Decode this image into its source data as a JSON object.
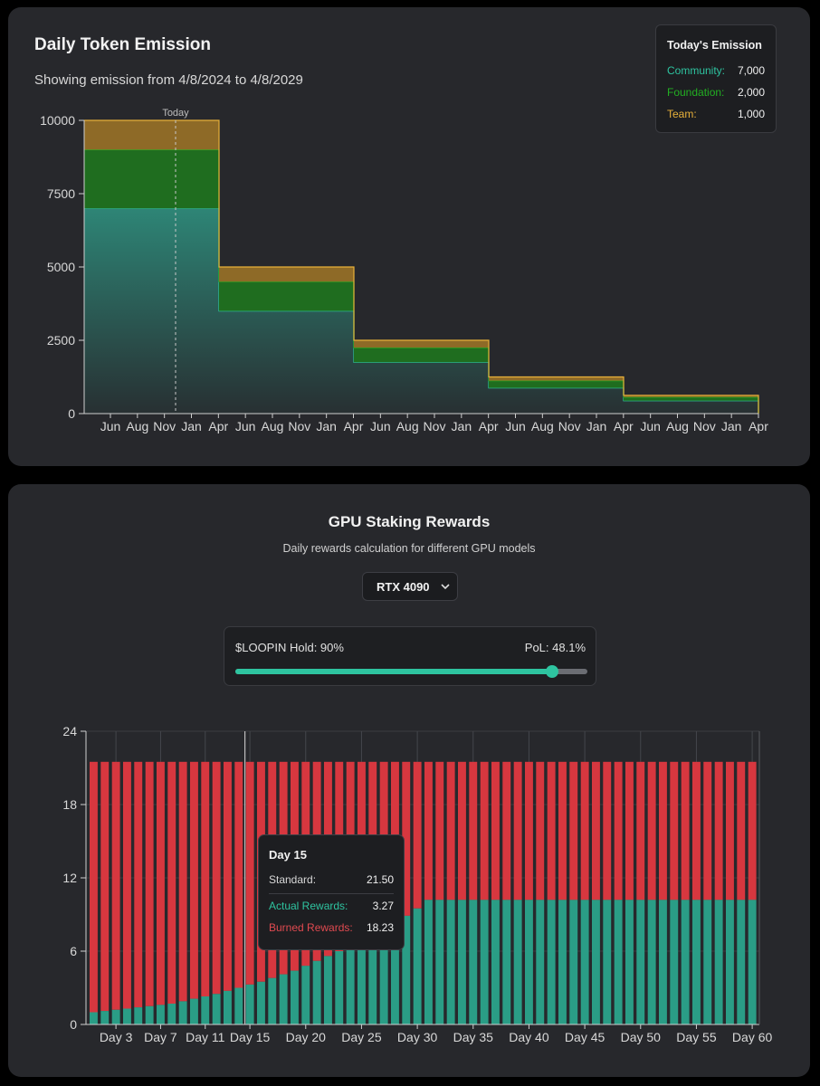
{
  "colors": {
    "community": "#2ec4a0",
    "foundation": "#22b022",
    "team": "#e8b13a",
    "actual": "#2a9d86",
    "burned": "#d7373f",
    "axis": "#cfcfcf"
  },
  "emission": {
    "title": "Daily Token Emission",
    "subtitle": "Showing emission from 4/8/2024 to 4/8/2029",
    "today_label": "Today",
    "legend": {
      "title": "Today's Emission",
      "items": [
        {
          "name": "Community:",
          "value": "7,000"
        },
        {
          "name": "Foundation:",
          "value": "2,000"
        },
        {
          "name": "Team:",
          "value": "1,000"
        }
      ]
    }
  },
  "staking": {
    "title": "GPU Staking Rewards",
    "subtitle": "Daily rewards calculation for different GPU models",
    "gpu_select": {
      "selected": "RTX 4090",
      "chevron_icon": "chevron-down-icon"
    },
    "slider": {
      "left_label": "$LOOPIN Hold: 90%",
      "right_label": "PoL: 48.1%",
      "value": 0.9
    },
    "tooltip": {
      "title": "Day 15",
      "rows": [
        {
          "label": "Standard:",
          "value": "21.50"
        },
        {
          "label": "Actual Rewards:",
          "value": "3.27"
        },
        {
          "label": "Burned Rewards:",
          "value": "18.23"
        }
      ]
    }
  },
  "chart_data": [
    {
      "type": "area",
      "stacked": true,
      "step": true,
      "title": "Daily Token Emission",
      "x_ticks": [
        "Jun",
        "Aug",
        "Nov",
        "Jan",
        "Apr",
        "Jun",
        "Aug",
        "Nov",
        "Jan",
        "Apr",
        "Jun",
        "Aug",
        "Nov",
        "Jan",
        "Apr",
        "Jun",
        "Aug",
        "Nov",
        "Jan",
        "Apr",
        "Jun",
        "Aug",
        "Nov",
        "Jan",
        "Apr"
      ],
      "y_ticks": [
        "0",
        "2500",
        "5000",
        "7500",
        "10000"
      ],
      "ylim": [
        0,
        10000
      ],
      "x_periods": [
        "2024-04-08 to 2025-04-08",
        "2025-04-08 to 2026-04-08",
        "2026-04-08 to 2027-04-08",
        "2027-04-08 to 2028-04-08",
        "2028-04-08 to 2029-04-08"
      ],
      "series": [
        {
          "name": "Community",
          "values": [
            7000,
            3500,
            1750,
            875,
            437.5
          ]
        },
        {
          "name": "Foundation",
          "values": [
            2000,
            1000,
            500,
            250,
            125
          ]
        },
        {
          "name": "Team",
          "values": [
            1000,
            500,
            250,
            125,
            62.5
          ]
        }
      ],
      "today": "Nov 2024",
      "grid": false
    },
    {
      "type": "bar",
      "stacked": true,
      "x_ticks": [
        "Day 3",
        "Day 7",
        "Day 11",
        "Day 15",
        "Day 20",
        "Day 25",
        "Day 30",
        "Day 35",
        "Day 40",
        "Day 45",
        "Day 50",
        "Day 55",
        "Day 60"
      ],
      "y_ticks": [
        "0",
        "6",
        "12",
        "18",
        "24"
      ],
      "ylim": [
        0,
        24
      ],
      "days": [
        1,
        2,
        3,
        4,
        5,
        6,
        7,
        8,
        9,
        10,
        11,
        12,
        13,
        14,
        15,
        16,
        17,
        18,
        19,
        20,
        21,
        22,
        23,
        24,
        25,
        26,
        27,
        28,
        29,
        30,
        31,
        32,
        33,
        34,
        35,
        36,
        37,
        38,
        39,
        40,
        41,
        42,
        43,
        44,
        45,
        46,
        47,
        48,
        49,
        50,
        51,
        52,
        53,
        54,
        55,
        56,
        57,
        58,
        59,
        60
      ],
      "series": [
        {
          "name": "Actual Rewards",
          "values": [
            1.0,
            1.1,
            1.2,
            1.3,
            1.4,
            1.5,
            1.6,
            1.7,
            1.9,
            2.1,
            2.3,
            2.5,
            2.75,
            3.0,
            3.27,
            3.5,
            3.8,
            4.1,
            4.4,
            4.8,
            5.2,
            5.6,
            6.0,
            6.4,
            6.9,
            7.3,
            7.8,
            8.3,
            8.9,
            9.5,
            10.2,
            10.2,
            10.2,
            10.2,
            10.2,
            10.2,
            10.2,
            10.2,
            10.2,
            10.2,
            10.2,
            10.2,
            10.2,
            10.2,
            10.2,
            10.2,
            10.2,
            10.2,
            10.2,
            10.2,
            10.2,
            10.2,
            10.2,
            10.2,
            10.2,
            10.2,
            10.2,
            10.2,
            10.2,
            10.2
          ]
        },
        {
          "name": "Burned Rewards",
          "standard_total": 21.5
        }
      ],
      "grid": true
    }
  ]
}
